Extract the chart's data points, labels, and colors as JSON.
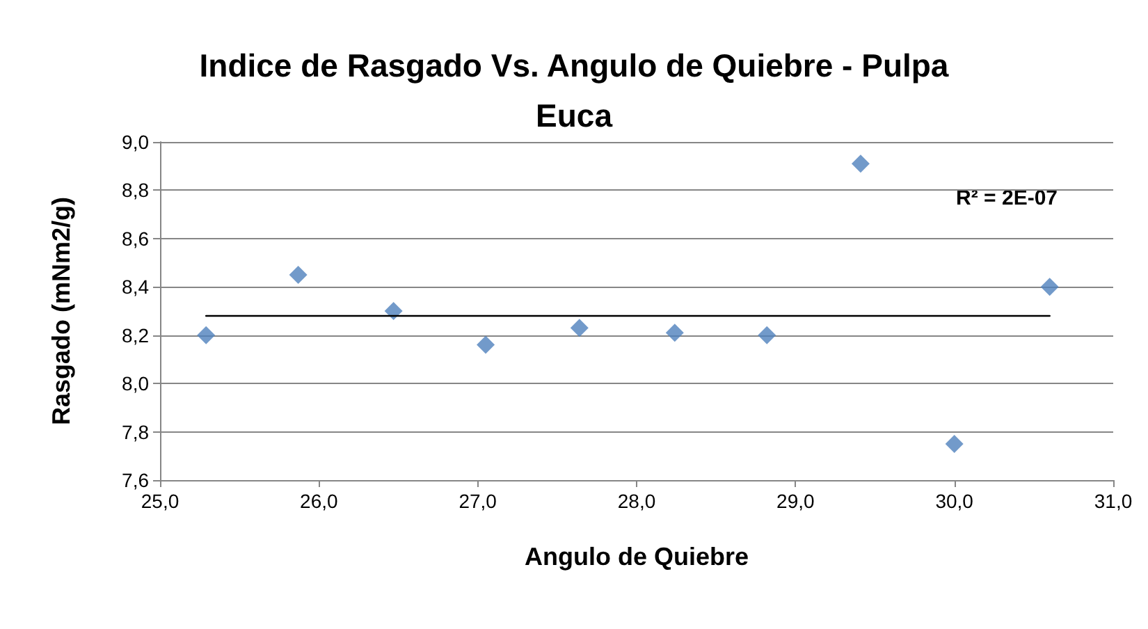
{
  "chart_data": {
    "type": "scatter",
    "title": "Indice de Rasgado Vs. Angulo de Quiebre - Pulpa\nEuca",
    "xlabel": "Angulo de Quiebre",
    "ylabel": "Rasgado (mNm2/g)",
    "series": [
      {
        "color": "#4f81bd",
        "marker": "diamond",
        "x": [
          25.29,
          25.87,
          26.47,
          27.05,
          27.64,
          28.24,
          28.82,
          29.41,
          30.0,
          30.6
        ],
        "values": [
          8.2,
          8.45,
          8.3,
          8.16,
          8.23,
          8.21,
          8.2,
          8.91,
          7.75,
          8.4
        ]
      },
      {
        "type": "line",
        "color": "#000000",
        "marker": "none",
        "x": [
          25.29,
          30.6
        ],
        "values": [
          8.28,
          8.28
        ]
      }
    ],
    "xlim": [
      25,
      31
    ],
    "xticks": [
      {
        "value": 25,
        "label": "25,0"
      },
      {
        "value": 26,
        "label": "26,0"
      },
      {
        "value": 27,
        "label": "27,0"
      },
      {
        "value": 28,
        "label": "28,0"
      },
      {
        "value": 29,
        "label": "29,0"
      },
      {
        "value": 30,
        "label": "30,0"
      },
      {
        "value": 31,
        "label": "31,0"
      }
    ],
    "ylim": [
      7.6,
      9.0
    ],
    "yticks": [
      {
        "value": 7.6,
        "label": "7,6"
      },
      {
        "value": 7.8,
        "label": "7,8"
      },
      {
        "value": 8.0,
        "label": "8,0"
      },
      {
        "value": 8.2,
        "label": "8,2"
      },
      {
        "value": 8.4,
        "label": "8,4"
      },
      {
        "value": 8.6,
        "label": "8,6"
      },
      {
        "value": 8.8,
        "label": "8,8"
      },
      {
        "value": 9.0,
        "label": "9,0"
      }
    ],
    "annotations": [
      "R² = 2E-07"
    ],
    "grid": "y"
  }
}
